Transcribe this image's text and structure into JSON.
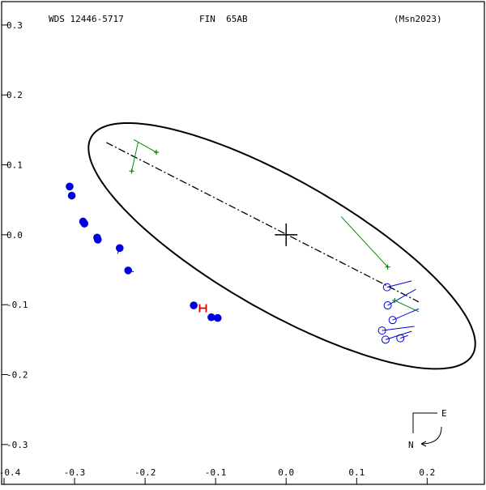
{
  "header": {
    "left": "WDS 12446-5717",
    "center": "FIN  65AB",
    "right": "(Msn2023)"
  },
  "compass": {
    "east": "E",
    "north": "N"
  },
  "colors": {
    "orbit": "#000000",
    "filled": "#0000e0",
    "open": "#0000e0",
    "interferometric": "#008800",
    "highlight": "#dd0000"
  },
  "chart_data": {
    "type": "scatter",
    "title": "",
    "xlabel": "",
    "ylabel": "",
    "xlim": [
      -0.4,
      0.28
    ],
    "ylim": [
      -0.35,
      0.33
    ],
    "x_ticks": [
      {
        "v": -0.4,
        "label": "-0.4"
      },
      {
        "v": -0.3,
        "label": "-0.3"
      },
      {
        "v": -0.2,
        "label": "-0.2"
      },
      {
        "v": -0.1,
        "label": "-0.1"
      },
      {
        "v": 0.0,
        "label": "0.0"
      },
      {
        "v": 0.1,
        "label": "0.1"
      },
      {
        "v": 0.2,
        "label": "0.2"
      }
    ],
    "y_ticks": [
      {
        "v": 0.3,
        "label": "0.3"
      },
      {
        "v": 0.2,
        "label": "0.2"
      },
      {
        "v": 0.1,
        "label": "0.1"
      },
      {
        "v": 0.0,
        "label": "0.0"
      },
      {
        "v": -0.1,
        "label": "-0.1"
      },
      {
        "v": -0.2,
        "label": "-0.2"
      },
      {
        "v": -0.3,
        "label": "-0.3"
      }
    ],
    "grid": false,
    "orbit": {
      "center": [
        -0.006,
        -0.016
      ],
      "semi_major": 0.312,
      "semi_minor": 0.0935,
      "rotation_deg": -30
    },
    "primary": [
      0.0,
      0.0
    ],
    "line_of_nodes": [
      [
        -0.255,
        0.132
      ],
      [
        0.188,
        -0.096
      ]
    ],
    "filled_points": [
      {
        "x": -0.307,
        "y": 0.069,
        "ox": -0.307,
        "oy": 0.069
      },
      {
        "x": -0.304,
        "y": 0.056,
        "ox": -0.304,
        "oy": 0.056
      },
      {
        "x": -0.288,
        "y": 0.019,
        "ox": -0.289,
        "oy": 0.02
      },
      {
        "x": -0.286,
        "y": 0.016,
        "ox": -0.287,
        "oy": 0.017
      },
      {
        "x": -0.268,
        "y": -0.004,
        "ox": -0.269,
        "oy": -0.002
      },
      {
        "x": -0.267,
        "y": -0.007,
        "ox": -0.268,
        "oy": -0.006
      },
      {
        "x": -0.236,
        "y": -0.019,
        "ox": -0.239,
        "oy": -0.027
      },
      {
        "x": -0.224,
        "y": -0.051,
        "ox": -0.216,
        "oy": -0.053
      },
      {
        "x": -0.131,
        "y": -0.101,
        "ox": -0.128,
        "oy": -0.102
      },
      {
        "x": -0.106,
        "y": -0.118,
        "ox": -0.106,
        "oy": -0.115
      },
      {
        "x": -0.097,
        "y": -0.119,
        "ox": -0.098,
        "oy": -0.117
      }
    ],
    "open_points": [
      {
        "x": 0.143,
        "y": -0.075,
        "ox": 0.178,
        "oy": -0.066
      },
      {
        "x": 0.144,
        "y": -0.101,
        "ox": 0.184,
        "oy": -0.078
      },
      {
        "x": 0.151,
        "y": -0.122,
        "ox": 0.188,
        "oy": -0.106
      },
      {
        "x": 0.136,
        "y": -0.137,
        "ox": 0.182,
        "oy": -0.131
      },
      {
        "x": 0.141,
        "y": -0.15,
        "ox": 0.178,
        "oy": -0.138
      },
      {
        "x": 0.162,
        "y": -0.148,
        "ox": 0.173,
        "oy": -0.144
      }
    ],
    "plus_points": [
      {
        "x": -0.184,
        "y": 0.118,
        "ox": -0.216,
        "oy": 0.136
      },
      {
        "x": -0.219,
        "y": 0.091,
        "ox": -0.21,
        "oy": 0.132
      },
      {
        "x": 0.144,
        "y": -0.046,
        "ox": 0.078,
        "oy": 0.026
      },
      {
        "x": 0.154,
        "y": -0.094,
        "ox": 0.188,
        "oy": -0.11
      }
    ],
    "highlight_point": {
      "x": -0.118,
      "y": -0.105
    }
  }
}
